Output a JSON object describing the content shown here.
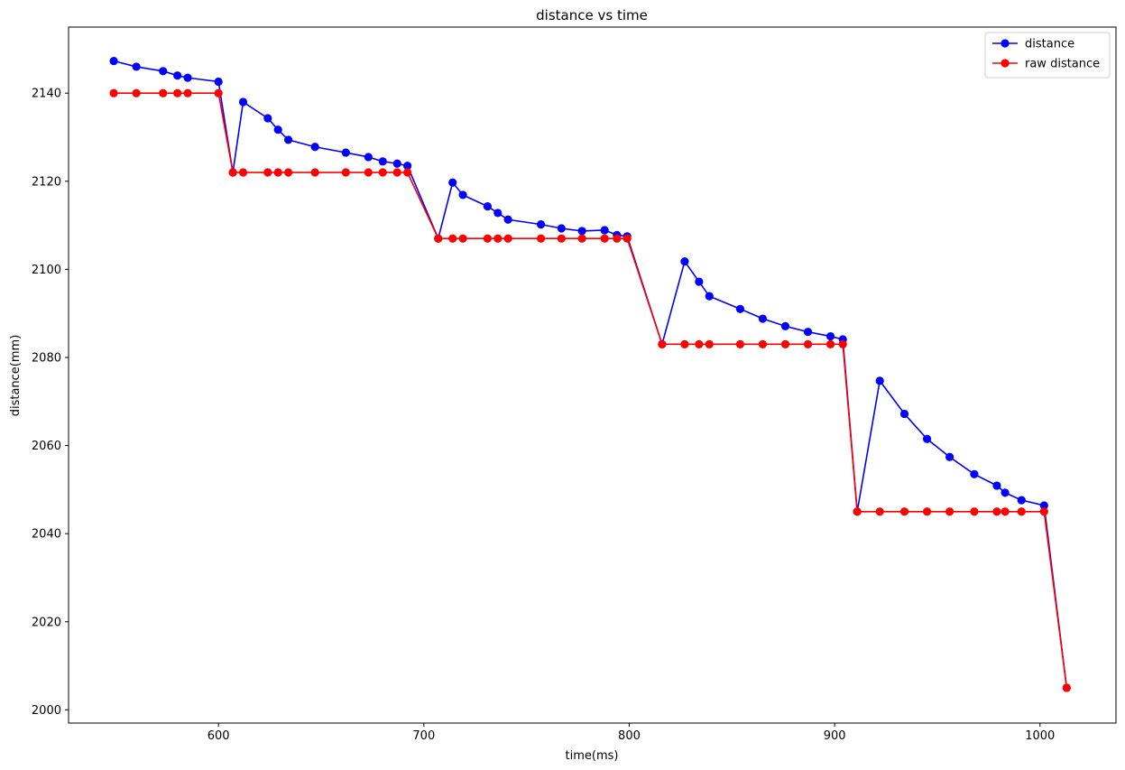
{
  "chart_data": {
    "type": "line",
    "title": "distance vs time",
    "xlabel": "time(ms)",
    "ylabel": "distance(mm)",
    "xlim": [
      527,
      1037
    ],
    "ylim": [
      1997,
      2155
    ],
    "xticks": [
      600,
      700,
      800,
      900,
      1000
    ],
    "yticks": [
      2000,
      2020,
      2040,
      2060,
      2080,
      2100,
      2120,
      2140
    ],
    "grid": false,
    "legend_position": "top-right",
    "series": [
      {
        "name": "distance",
        "color": "#0000ff",
        "marker": "circle",
        "x": [
          549,
          560,
          573,
          580,
          585,
          600,
          607,
          612,
          624,
          629,
          634,
          647,
          662,
          673,
          680,
          687,
          692,
          707,
          714,
          719,
          731,
          736,
          741,
          757,
          767,
          777,
          788,
          794,
          799,
          816,
          827,
          834,
          839,
          854,
          865,
          876,
          887,
          898,
          904,
          911,
          922,
          934,
          945,
          956,
          968,
          979,
          983,
          991,
          1002,
          1013
        ],
        "y": [
          2147.3,
          2146,
          2145,
          2144,
          2143.5,
          2142.6,
          2122,
          2138,
          2134.3,
          2131.7,
          2129.4,
          2127.8,
          2126.5,
          2125.5,
          2124.5,
          2124,
          2123.5,
          2107,
          2119.7,
          2116.9,
          2114.3,
          2112.8,
          2111.3,
          2110.2,
          2109.3,
          2108.7,
          2108.9,
          2107.8,
          2107.5,
          2083,
          2101.8,
          2097.2,
          2093.9,
          2091,
          2088.8,
          2087.1,
          2085.8,
          2084.8,
          2084.1,
          2045,
          2074.7,
          2067.2,
          2061.5,
          2057.4,
          2053.5,
          2050.9,
          2049.3,
          2047.6,
          2046.4,
          2005
        ]
      },
      {
        "name": "raw distance",
        "color": "#ff0000",
        "marker": "circle",
        "x": [
          549,
          560,
          573,
          580,
          585,
          600,
          607,
          612,
          624,
          629,
          634,
          647,
          662,
          673,
          680,
          687,
          692,
          707,
          714,
          719,
          731,
          736,
          741,
          757,
          767,
          777,
          788,
          794,
          799,
          816,
          827,
          834,
          839,
          854,
          865,
          876,
          887,
          898,
          904,
          911,
          922,
          934,
          945,
          956,
          968,
          979,
          983,
          991,
          1002,
          1013
        ],
        "y": [
          2140,
          2140,
          2140,
          2140,
          2140,
          2140,
          2122,
          2122,
          2122,
          2122,
          2122,
          2122,
          2122,
          2122,
          2122,
          2122,
          2122,
          2107,
          2107,
          2107,
          2107,
          2107,
          2107,
          2107,
          2107,
          2107,
          2107,
          2107,
          2107,
          2083,
          2083,
          2083,
          2083,
          2083,
          2083,
          2083,
          2083,
          2083,
          2083,
          2045,
          2045,
          2045,
          2045,
          2045,
          2045,
          2045,
          2045,
          2045,
          2045,
          2005
        ]
      }
    ]
  }
}
